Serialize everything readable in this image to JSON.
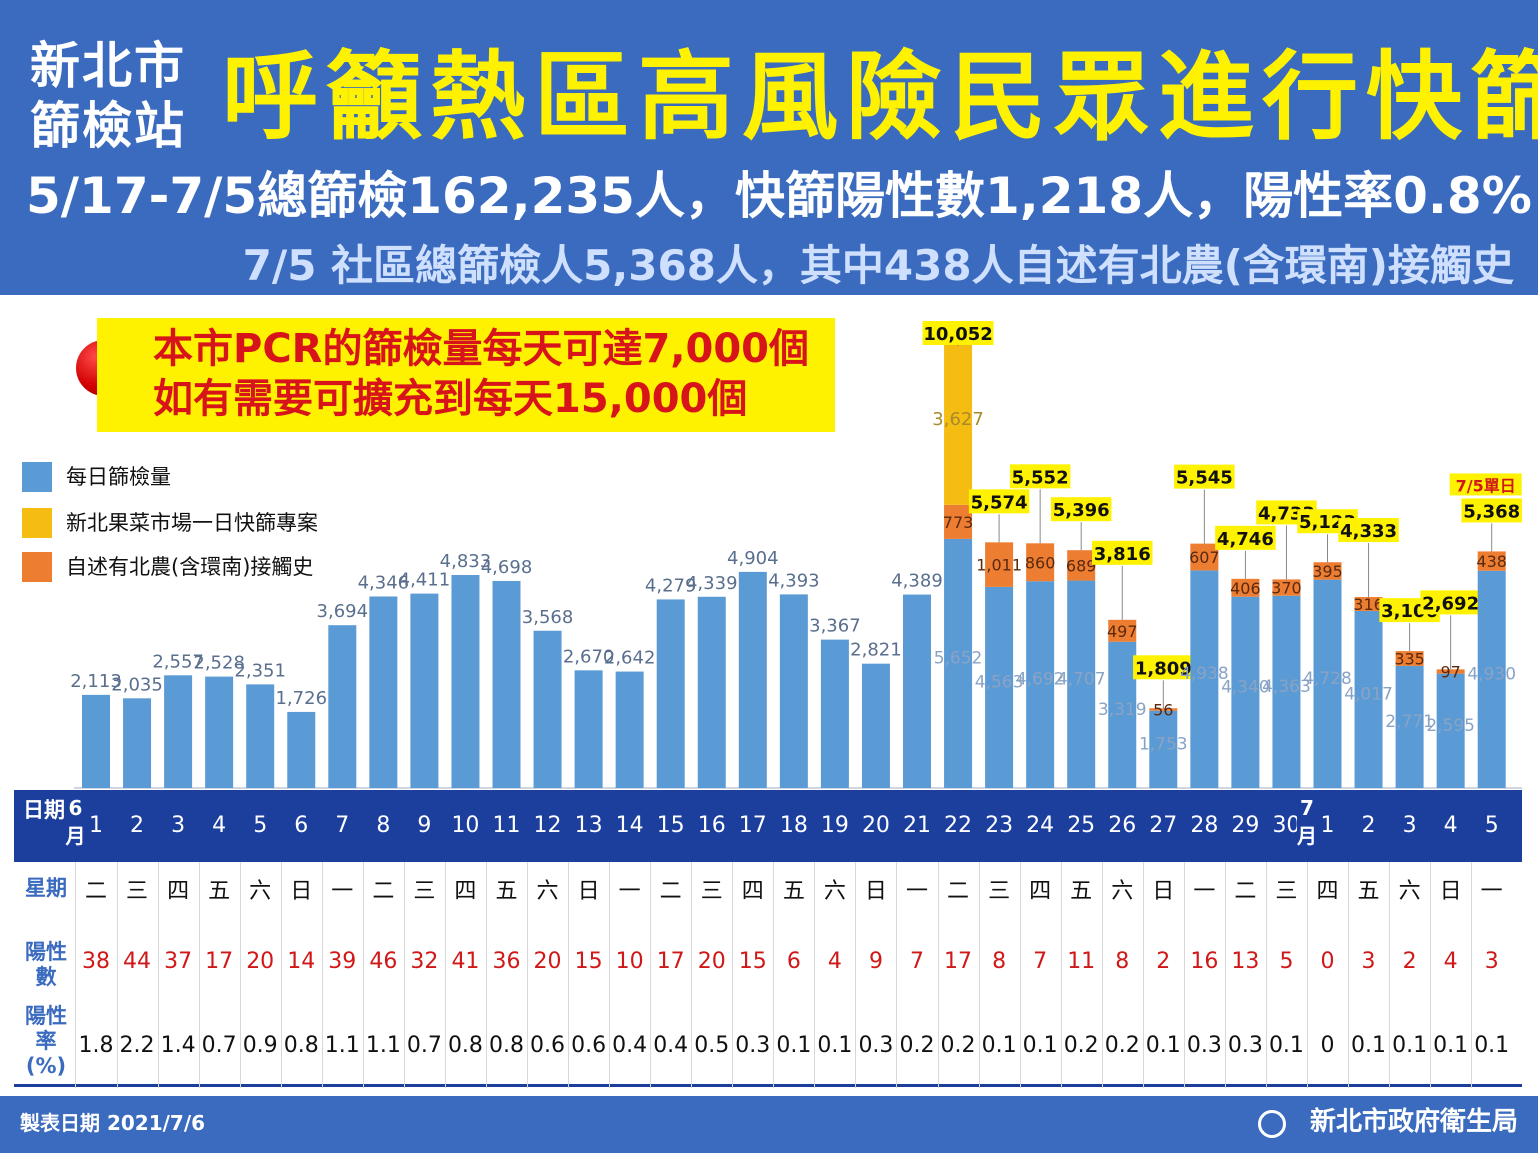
{
  "header": {
    "station_line1": "新北市",
    "station_line2": "篩檢站",
    "title": "呼籲熱區高風險民眾進行快篩",
    "stats": "5/17-7/5總篩檢162,235人，快篩陽性數1,218人，陽性率0.8%",
    "subline": "7/5 社區總篩檢人5,368人，其中438人自述有北農(含環南)接觸史"
  },
  "pcr_note": {
    "line1": "本市PCR的篩檢量每天可達7,000個",
    "line2": "如有需要可擴充到每天15,000個"
  },
  "legend": {
    "daily": "每日篩檢量",
    "market": "新北果菜市場一日快篩專案",
    "contact": "自述有北農(含環南)接觸史"
  },
  "colors": {
    "daily": "#5b9bd5",
    "market": "#f5bc12",
    "contact": "#ed7d31",
    "header": "#3a6bbf",
    "table_header": "#1c3f9e"
  },
  "chart_data": {
    "type": "bar",
    "stacked": true,
    "categories": [
      "6/1",
      "6/2",
      "6/3",
      "6/4",
      "6/5",
      "6/6",
      "6/7",
      "6/8",
      "6/9",
      "6/10",
      "6/11",
      "6/12",
      "6/13",
      "6/14",
      "6/15",
      "6/16",
      "6/17",
      "6/18",
      "6/19",
      "6/20",
      "6/21",
      "6/22",
      "6/23",
      "6/24",
      "6/25",
      "6/26",
      "6/27",
      "6/28",
      "6/29",
      "6/30",
      "7/1",
      "7/2",
      "7/3",
      "7/4",
      "7/5"
    ],
    "series": [
      {
        "name": "每日篩檢量",
        "values": [
          2113,
          2035,
          2557,
          2528,
          2351,
          1726,
          3694,
          4346,
          4411,
          4833,
          4698,
          3568,
          2670,
          2642,
          4279,
          4339,
          4904,
          4393,
          3367,
          2821,
          4389,
          5652,
          4563,
          4692,
          4707,
          3319,
          1753,
          4938,
          4340,
          4363,
          4728,
          4017,
          2771,
          2595,
          4930
        ]
      },
      {
        "name": "新北果菜市場一日快篩專案",
        "values": [
          0,
          0,
          0,
          0,
          0,
          0,
          0,
          0,
          0,
          0,
          0,
          0,
          0,
          0,
          0,
          0,
          0,
          0,
          0,
          0,
          0,
          3627,
          0,
          0,
          0,
          0,
          0,
          0,
          0,
          0,
          0,
          0,
          0,
          0,
          0
        ]
      },
      {
        "name": "自述有北農(含環南)接觸史",
        "values": [
          0,
          0,
          0,
          0,
          0,
          0,
          0,
          0,
          0,
          0,
          0,
          0,
          0,
          0,
          0,
          0,
          0,
          0,
          0,
          0,
          0,
          773,
          1011,
          860,
          689,
          497,
          56,
          607,
          406,
          370,
          395,
          316,
          335,
          97,
          438
        ]
      }
    ],
    "daily_labels": [
      "2,113",
      "2,035",
      "2,557",
      "2,528",
      "2,351",
      "1,726",
      "3,694",
      "4,346",
      "4,411",
      "4,833",
      "4,698",
      "3,568",
      "2,670",
      "2,642",
      "4,279",
      "4,339",
      "4,904",
      "4,393",
      "3,367",
      "2,821",
      "4,389",
      "5,652",
      "4,563",
      "4,692",
      "4,707",
      "3,319",
      "1,753",
      "4,938",
      "4,340",
      "4,363",
      "4,728",
      "4,017",
      "2,771",
      "2,595",
      "4,930"
    ],
    "market_labels": {
      "21": "3,627"
    },
    "contact_labels": {
      "21": "773",
      "22": "1,011",
      "23": "860",
      "24": "689",
      "25": "497",
      "26": "56",
      "27": "607",
      "28": "406",
      "29": "370",
      "30": "395",
      "31": "316",
      "32": "335",
      "33": "97",
      "34": "438"
    },
    "total_labels": {
      "21": "10,052",
      "22": "5,574",
      "23": "5,552",
      "24": "5,396",
      "25": "3,816",
      "26": "1,809",
      "27": "5,545",
      "28": "4,746",
      "29": "4,733",
      "30": "5,123",
      "31": "4,333",
      "32": "3,106",
      "33": "2,692",
      "34": "5,368"
    },
    "single_day_label": "7/5單日",
    "ylim": [
      0,
      10052
    ]
  },
  "table": {
    "date_header": "日期",
    "weekday_header": "星期",
    "positive_header": "陽性數",
    "rate_header": "陽性率(%)",
    "month_june": "6月",
    "month_july": "7月",
    "days": [
      "1",
      "2",
      "3",
      "4",
      "5",
      "6",
      "7",
      "8",
      "9",
      "10",
      "11",
      "12",
      "13",
      "14",
      "15",
      "16",
      "17",
      "18",
      "19",
      "20",
      "21",
      "22",
      "23",
      "24",
      "25",
      "26",
      "27",
      "28",
      "29",
      "30",
      "1",
      "2",
      "3",
      "4",
      "5"
    ],
    "weekdays": [
      "二",
      "三",
      "四",
      "五",
      "六",
      "日",
      "一",
      "二",
      "三",
      "四",
      "五",
      "六",
      "日",
      "一",
      "二",
      "三",
      "四",
      "五",
      "六",
      "日",
      "一",
      "二",
      "三",
      "四",
      "五",
      "六",
      "日",
      "一",
      "二",
      "三",
      "四",
      "五",
      "六",
      "日",
      "一"
    ],
    "positives": [
      "38",
      "44",
      "37",
      "17",
      "20",
      "14",
      "39",
      "46",
      "32",
      "41",
      "36",
      "20",
      "15",
      "10",
      "17",
      "20",
      "15",
      "6",
      "4",
      "9",
      "7",
      "17",
      "8",
      "7",
      "11",
      "8",
      "2",
      "16",
      "13",
      "5",
      "0",
      "3",
      "2",
      "4",
      "3"
    ],
    "rates": [
      "1.8",
      "2.2",
      "1.4",
      "0.7",
      "0.9",
      "0.8",
      "1.1",
      "1.1",
      "0.7",
      "0.8",
      "0.8",
      "0.6",
      "0.6",
      "0.4",
      "0.4",
      "0.5",
      "0.3",
      "0.1",
      "0.1",
      "0.3",
      "0.2",
      "0.2",
      "0.1",
      "0.1",
      "0.2",
      "0.2",
      "0.1",
      "0.3",
      "0.3",
      "0.1",
      "0",
      "0.1",
      "0.1",
      "0.1",
      "0.1"
    ]
  },
  "footer": {
    "date": "製表日期 2021/7/6",
    "org": "新北市政府衛生局"
  }
}
